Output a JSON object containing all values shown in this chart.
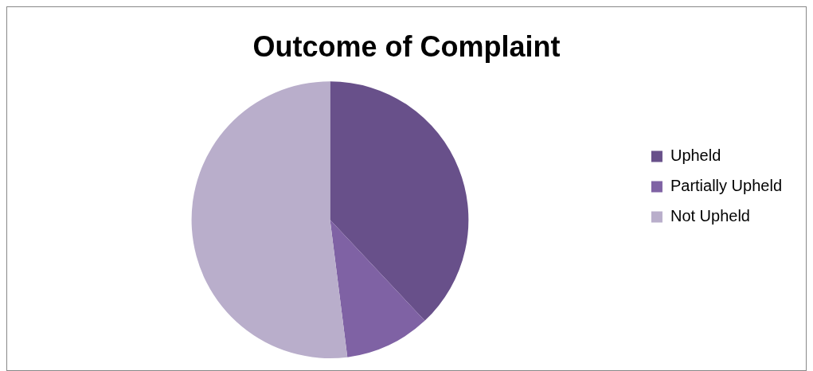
{
  "chart_data": {
    "type": "pie",
    "title": "Outcome of Complaint",
    "categories": [
      "Upheld",
      "Partially Upheld",
      "Not Upheld"
    ],
    "values": [
      38,
      10,
      52
    ],
    "colors": [
      "#68508a",
      "#7f62a4",
      "#b9aecb"
    ],
    "legend": "right"
  }
}
